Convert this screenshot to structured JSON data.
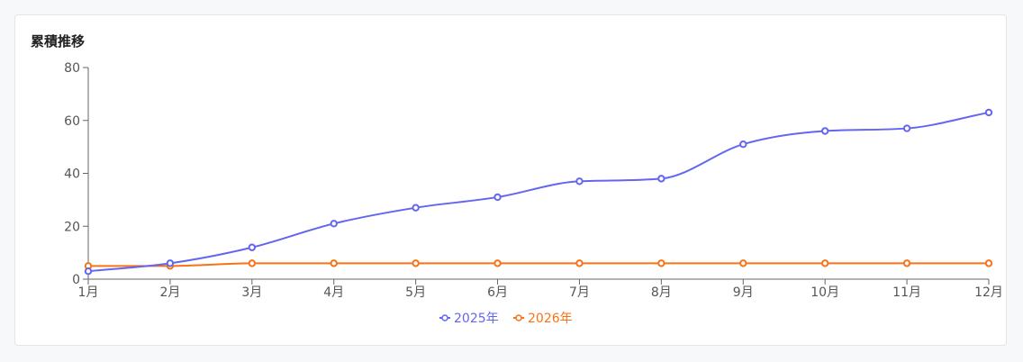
{
  "card": {
    "title": "累積推移"
  },
  "chart_data": {
    "type": "line",
    "title": "累積推移",
    "categories": [
      "1月",
      "2月",
      "3月",
      "4月",
      "5月",
      "6月",
      "7月",
      "8月",
      "9月",
      "10月",
      "11月",
      "12月"
    ],
    "ylim": [
      0,
      80
    ],
    "yticks": [
      0,
      20,
      40,
      60,
      80
    ],
    "grid": false,
    "legend_position": "bottom",
    "series": [
      {
        "name": "2025年",
        "color": "#6366f1",
        "values": [
          3,
          6,
          12,
          21,
          27,
          31,
          37,
          38,
          51,
          56,
          57,
          63
        ]
      },
      {
        "name": "2026年",
        "color": "#f97316",
        "values": [
          5,
          5,
          6,
          6,
          6,
          6,
          6,
          6,
          6,
          6,
          6,
          6
        ]
      }
    ]
  }
}
